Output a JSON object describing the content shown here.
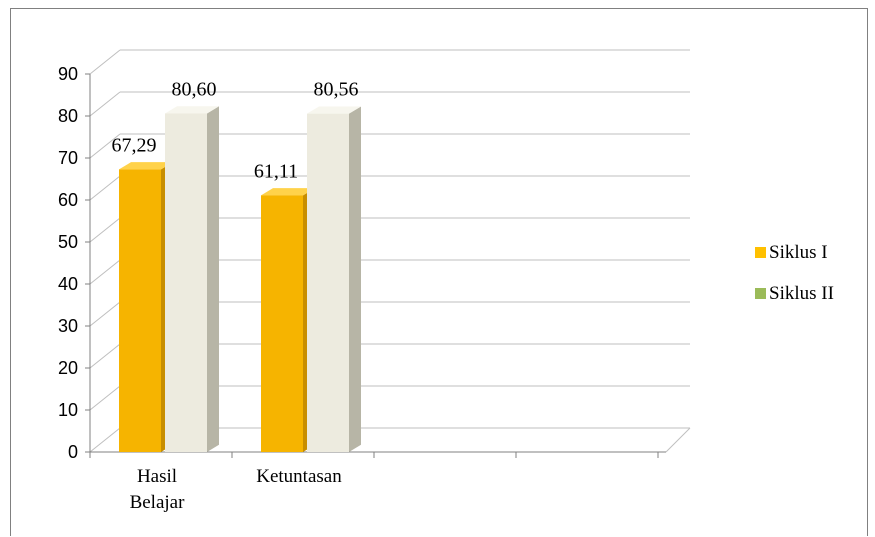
{
  "chart_data": {
    "type": "bar",
    "categories": [
      "Hasil Belajar",
      "Ketuntasan"
    ],
    "category_lines": [
      [
        "Hasil",
        "Belajar"
      ],
      [
        "Ketuntasan"
      ]
    ],
    "series": [
      {
        "name": "Siklus I",
        "values": [
          67.29,
          61.11
        ],
        "labels": [
          "67,29",
          "61,11"
        ],
        "color": "#FFC000"
      },
      {
        "name": "Siklus II",
        "values": [
          80.6,
          80.56
        ],
        "labels": [
          "80,60",
          "80,56"
        ],
        "color": "#9BBB59"
      }
    ],
    "bar_face_colors": [
      "#F6B400",
      "#EDEBDF"
    ],
    "ylim": [
      0,
      90
    ],
    "yticks": [
      "0",
      "10",
      "20",
      "30",
      "40",
      "50",
      "60",
      "70",
      "80",
      "90"
    ],
    "grid": true,
    "legend_position": "right",
    "title": "",
    "xlabel": "",
    "ylabel": ""
  }
}
